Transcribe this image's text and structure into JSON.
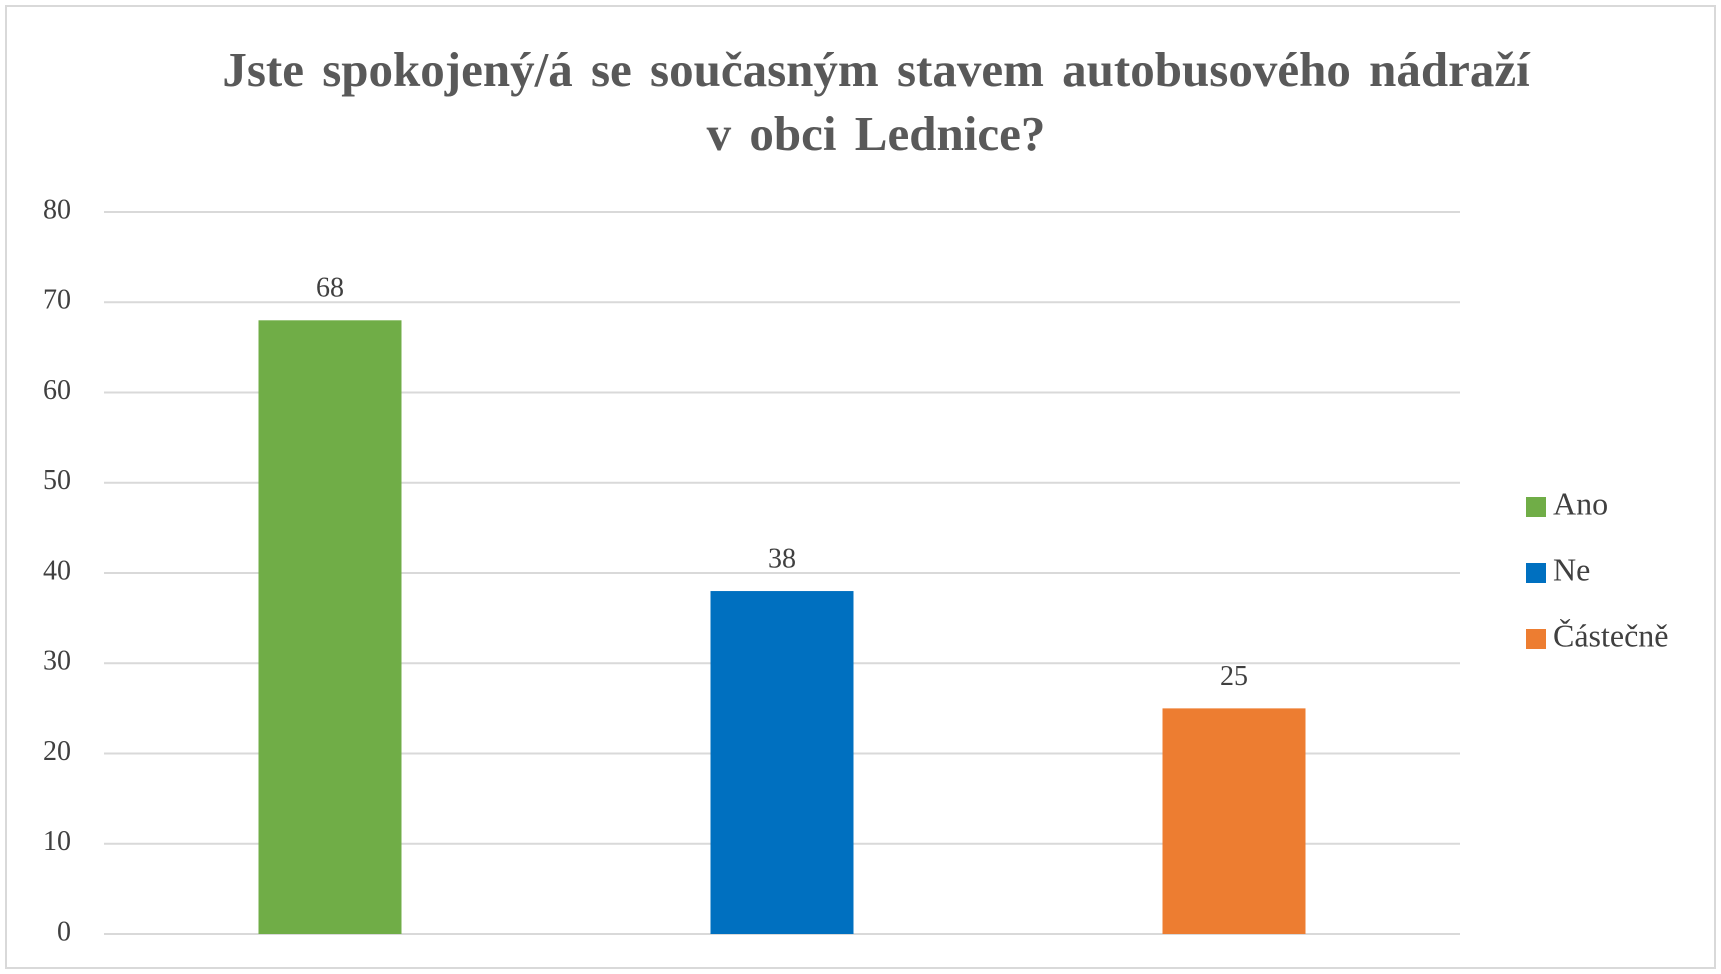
{
  "chart_data": {
    "type": "bar",
    "title": "Jste spokojený/á se současným stavem autobusového nádraží v obci Lednice?",
    "categories": [
      null
    ],
    "series": [
      {
        "name": "Ano",
        "color": "#70ad47",
        "values": [
          68
        ]
      },
      {
        "name": "Ne",
        "color": "#0070c0",
        "values": [
          38
        ]
      },
      {
        "name": "Částečně",
        "color": "#ed7d31",
        "values": [
          25
        ]
      }
    ],
    "ylim": [
      0,
      80
    ],
    "yticks": [
      0,
      10,
      20,
      30,
      40,
      50,
      60,
      70,
      80
    ],
    "grid": true,
    "legend": "right"
  }
}
